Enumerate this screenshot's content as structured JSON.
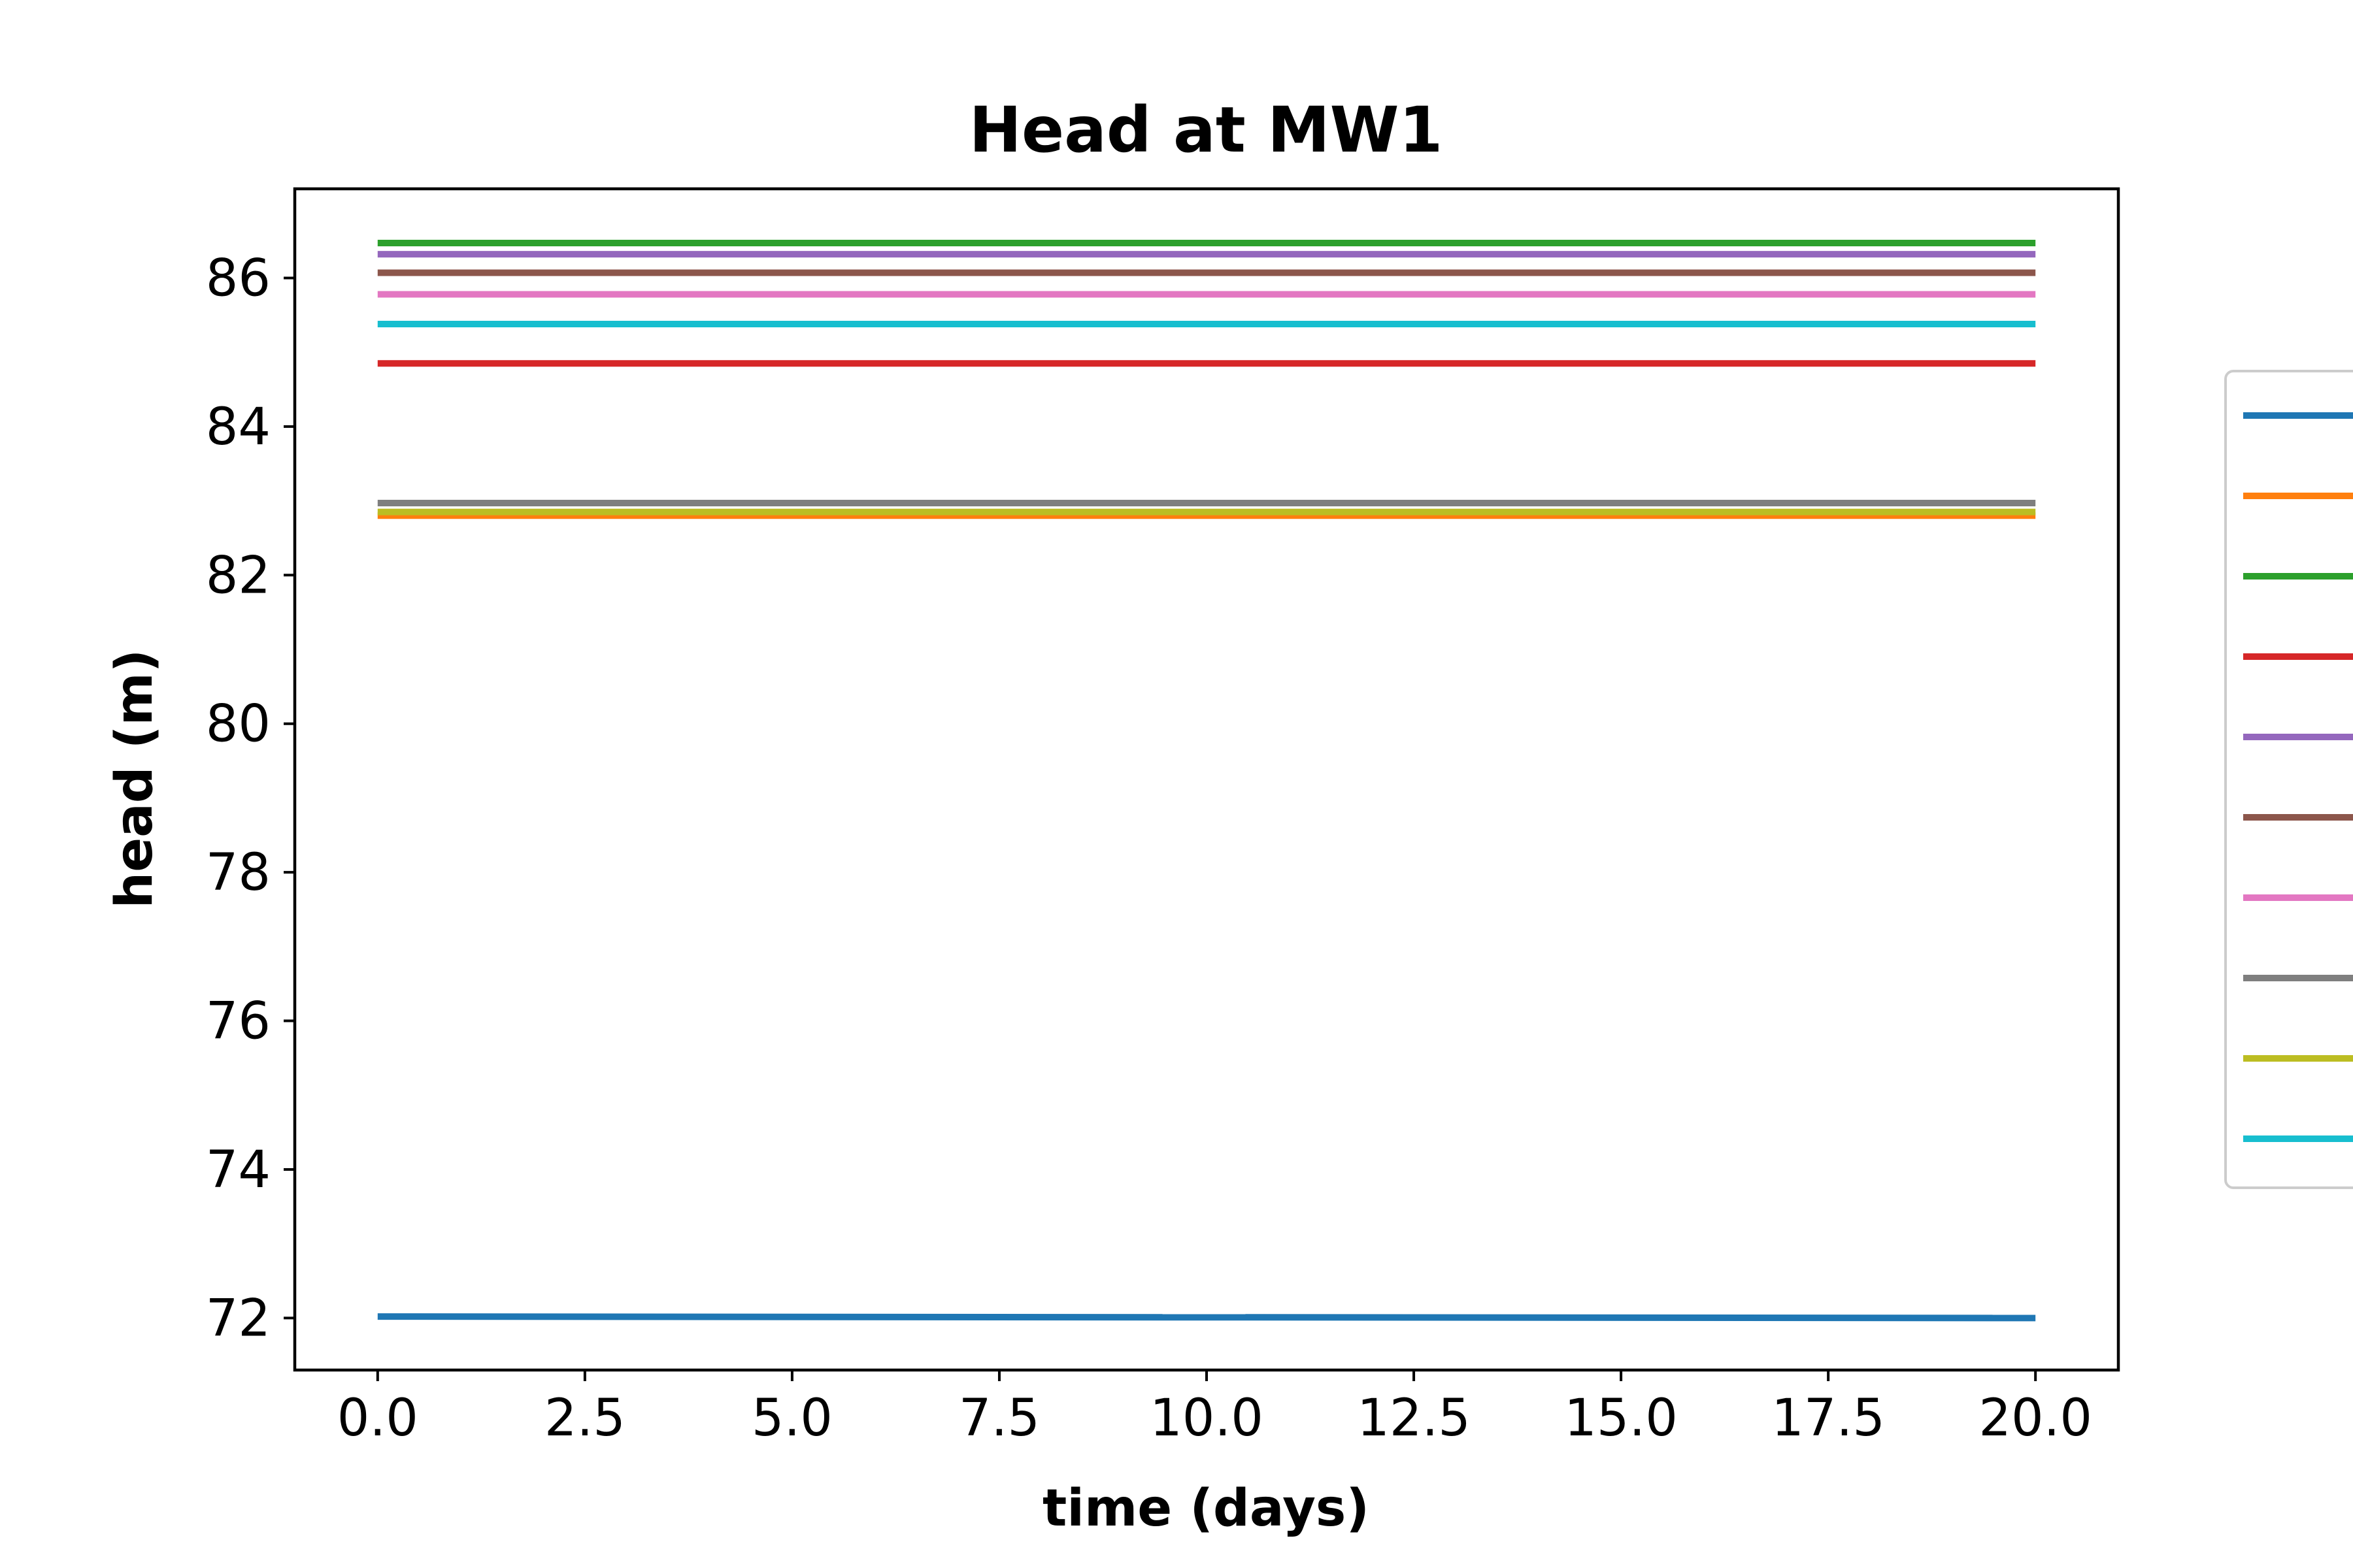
{
  "chart_data": {
    "type": "line",
    "title": "Head at MW1",
    "xlabel": "time (days)",
    "ylabel": "head (m)",
    "xlim": [
      -1.0,
      21.0
    ],
    "ylim": [
      71.3,
      87.2
    ],
    "x_ticks": [
      0.0,
      2.5,
      5.0,
      7.5,
      10.0,
      12.5,
      15.0,
      17.5,
      20.0
    ],
    "x_tick_labels": [
      "0.0",
      "2.5",
      "5.0",
      "7.5",
      "10.0",
      "12.5",
      "15.0",
      "17.5",
      "20.0"
    ],
    "y_ticks": [
      72,
      74,
      76,
      78,
      80,
      82,
      84,
      86
    ],
    "y_tick_labels": [
      "72",
      "74",
      "76",
      "78",
      "80",
      "82",
      "84",
      "86"
    ],
    "grid": false,
    "legend_placement": "right, outside plot (clipped)",
    "x": [
      0.0,
      20.0
    ],
    "series": [
      {
        "color": "#1f77b4",
        "values": [
          72.02,
          72.0
        ]
      },
      {
        "color": "#ff7f0e",
        "values": [
          82.8,
          82.8
        ]
      },
      {
        "color": "#2ca02c",
        "values": [
          86.47,
          86.47
        ]
      },
      {
        "color": "#d62728",
        "values": [
          84.85,
          84.85
        ]
      },
      {
        "color": "#9467bd",
        "values": [
          86.32,
          86.32
        ]
      },
      {
        "color": "#8c564b",
        "values": [
          86.07,
          86.07
        ]
      },
      {
        "color": "#e377c2",
        "values": [
          85.78,
          85.78
        ]
      },
      {
        "color": "#7f7f7f",
        "values": [
          82.97,
          82.97
        ]
      },
      {
        "color": "#bcbd22",
        "values": [
          82.85,
          82.85
        ]
      },
      {
        "color": "#17becf",
        "values": [
          85.38,
          85.38
        ]
      }
    ]
  }
}
